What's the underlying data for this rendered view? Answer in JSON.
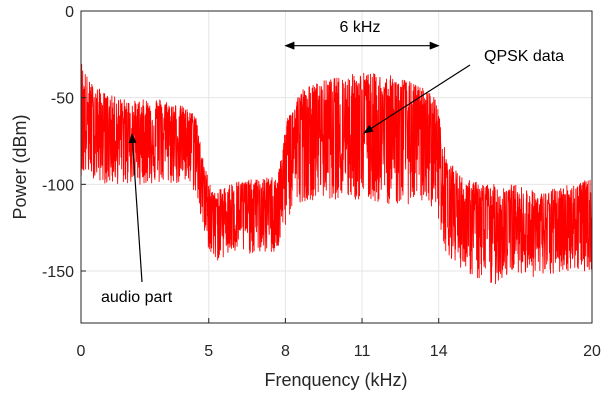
{
  "chart_data": {
    "type": "line",
    "title": "",
    "xlabel": "Frenquency (kHz)",
    "ylabel": "Power (dBm)",
    "xlim": [
      0,
      20
    ],
    "ylim": [
      -180,
      0
    ],
    "xticks": [
      0,
      5,
      8,
      11,
      14,
      20
    ],
    "yticks": [
      0,
      -50,
      -100,
      -150
    ],
    "grid": true,
    "series_color": "#ff0000",
    "envelope": {
      "x": [
        0,
        0.3,
        1,
        2,
        3,
        4,
        4.5,
        4.8,
        5.2,
        6,
        7,
        7.7,
        8.1,
        8.6,
        9.5,
        11,
        12.5,
        13.5,
        13.9,
        14.3,
        15,
        16,
        17,
        18,
        19,
        20
      ],
      "top": [
        -27,
        -40,
        -48,
        -52,
        -50,
        -55,
        -60,
        -88,
        -105,
        -98,
        -97,
        -95,
        -60,
        -45,
        -40,
        -35,
        -38,
        -45,
        -50,
        -85,
        -97,
        -100,
        -100,
        -105,
        -100,
        -97
      ],
      "mid": [
        -65,
        -65,
        -68,
        -70,
        -68,
        -70,
        -72,
        -100,
        -118,
        -115,
        -112,
        -110,
        -75,
        -68,
        -65,
        -65,
        -66,
        -68,
        -72,
        -100,
        -118,
        -120,
        -122,
        -125,
        -122,
        -120
      ],
      "bot": [
        -95,
        -95,
        -100,
        -100,
        -100,
        -100,
        -105,
        -130,
        -145,
        -140,
        -140,
        -140,
        -120,
        -110,
        -108,
        -110,
        -112,
        -110,
        -115,
        -140,
        -150,
        -160,
        -150,
        -155,
        -150,
        -150
      ]
    },
    "annotations": [
      {
        "text": "6 kHz",
        "type": "double-arrow",
        "x_from": 8,
        "x_to": 14,
        "y": -20
      },
      {
        "text": "QPSK data",
        "type": "arrow"
      },
      {
        "text": "audio part",
        "type": "arrow"
      }
    ]
  }
}
